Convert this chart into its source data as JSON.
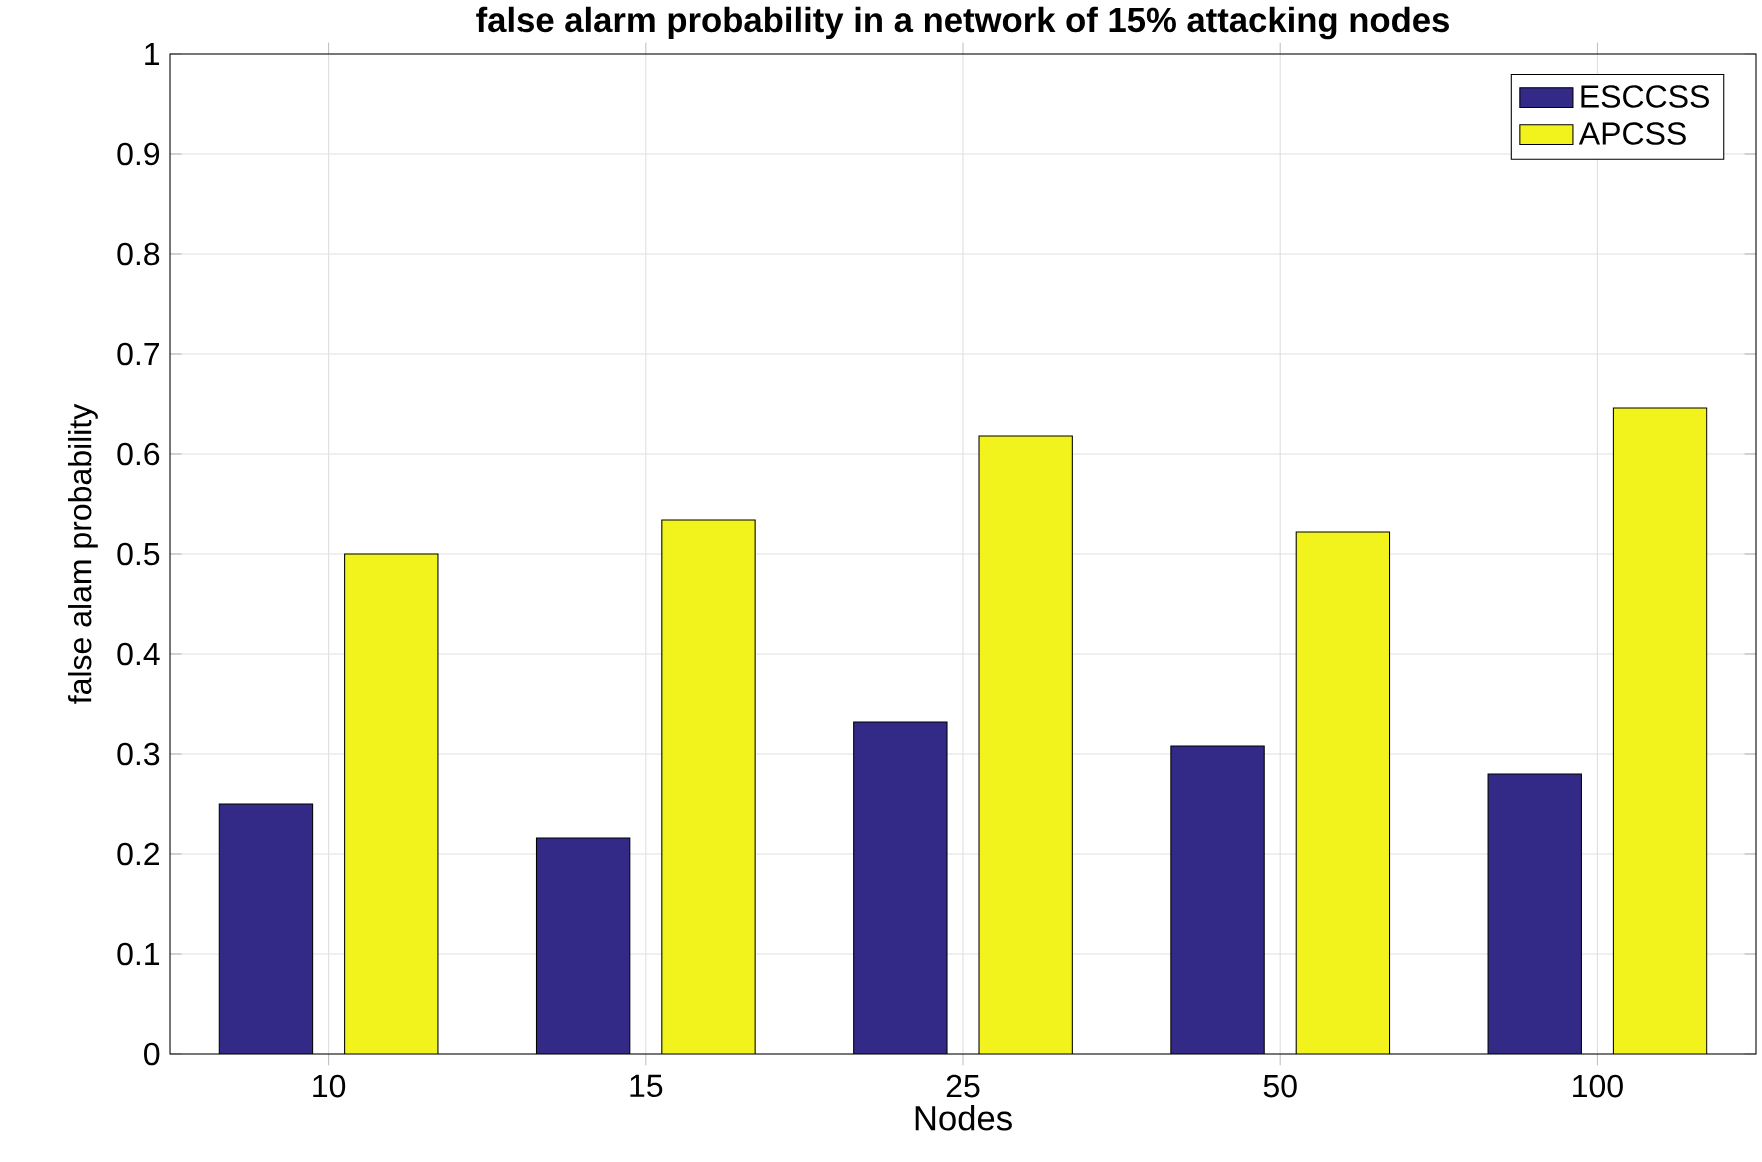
{
  "chart_data": {
    "type": "bar",
    "title": "false alarm probability in a network of 15% attacking nodes",
    "xlabel": "Nodes",
    "ylabel": "false alam probability",
    "categories": [
      "10",
      "15",
      "25",
      "50",
      "100"
    ],
    "series": [
      {
        "name": "ESCCSS",
        "color": "#332a87",
        "values": [
          0.25,
          0.216,
          0.332,
          0.308,
          0.28
        ]
      },
      {
        "name": "APCSS",
        "color": "#f2f21c",
        "values": [
          0.5,
          0.534,
          0.618,
          0.522,
          0.646
        ]
      }
    ],
    "ylim": [
      0,
      1
    ],
    "yticks": [
      0,
      0.1,
      0.2,
      0.3,
      0.4,
      0.5,
      0.6,
      0.7,
      0.8,
      0.9,
      1
    ],
    "grid": true,
    "legend": "top right"
  }
}
